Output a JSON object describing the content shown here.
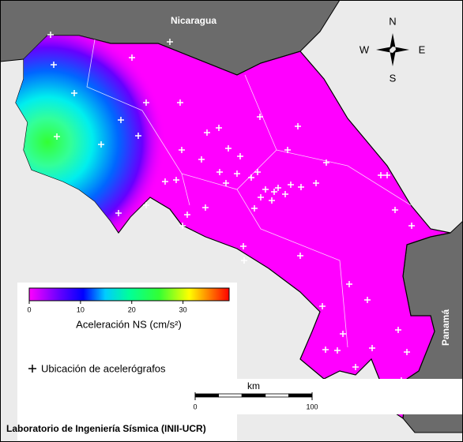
{
  "map": {
    "labels": {
      "nicaragua": "Nicaragua",
      "panama": "Panamá"
    },
    "compass": {
      "n": "N",
      "w": "W",
      "e": "E",
      "s": "S"
    },
    "colorbar": {
      "label": "Aceleración NS (cm/s²)",
      "lim": [
        0,
        39
      ],
      "ticks": [
        0,
        10,
        20,
        30
      ]
    },
    "legend": "Ubicación de acelerógrafos",
    "scale_bar": {
      "unit": "km",
      "ticks": [
        0,
        100
      ]
    },
    "footer": "Laboratorio de Ingeniería Sísmica (INII-UCR)"
  }
}
